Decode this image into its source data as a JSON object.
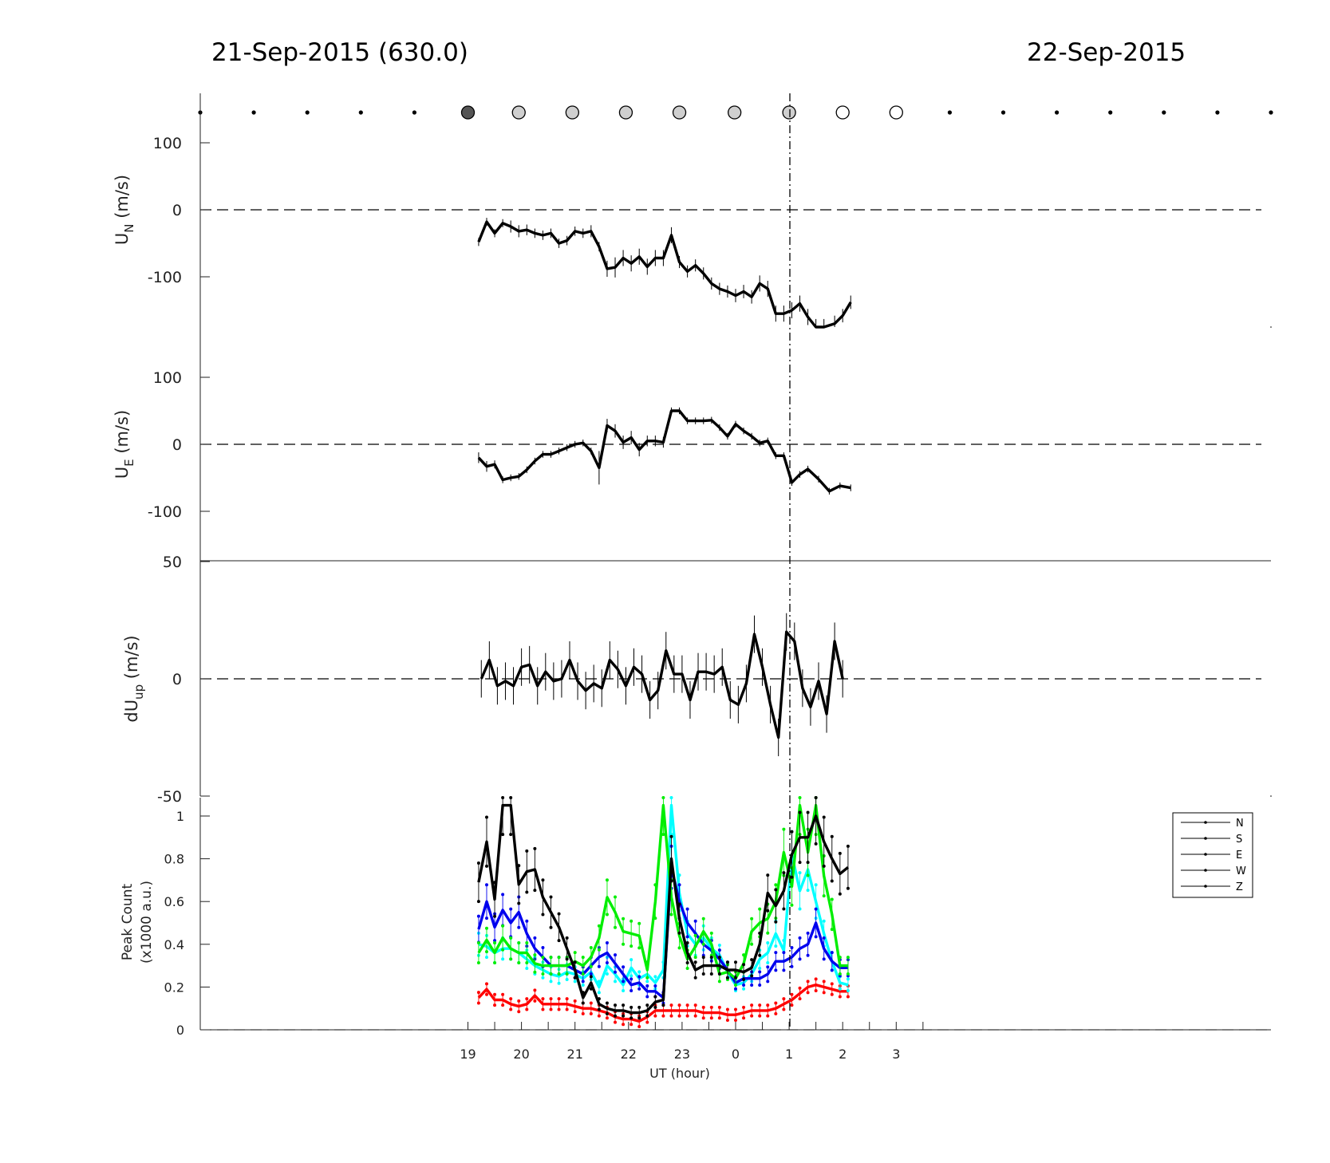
{
  "header": {
    "date_left": "21-Sep-2015 (630.0)",
    "date_right": "22-Sep-2015"
  },
  "colors": {
    "N": "#000000",
    "S": "#ff0000",
    "E": "#00ee00",
    "W": "#0000ee",
    "Z": "#00ffff"
  },
  "chart_data": [
    {
      "type": "scatter",
      "panel": "cloud-indicator",
      "x": [
        14,
        15,
        16,
        17,
        18,
        19,
        19.95,
        20.95,
        21.95,
        22.95,
        23.98,
        25,
        26,
        27,
        28,
        29,
        30,
        31,
        32,
        33,
        34
      ],
      "state": [
        "dot",
        "dot",
        "dot",
        "dot",
        "dot",
        "dark",
        "light",
        "light",
        "light",
        "light",
        "light",
        "light",
        "open",
        "open",
        "dot",
        "dot",
        "dot",
        "dot",
        "dot",
        "dot",
        "dot"
      ]
    },
    {
      "type": "line",
      "panel": "UN",
      "ylabel": "U",
      "ylabel_sub": "N",
      "ylabel_unit": " (m/s)",
      "xlim": [
        14,
        34
      ],
      "ylim": [
        -175,
        175
      ],
      "yticks": [
        100,
        0,
        -100
      ],
      "x": [
        19.2,
        19.35,
        19.5,
        19.65,
        19.8,
        19.95,
        20.1,
        20.25,
        20.4,
        20.55,
        20.7,
        20.85,
        21.0,
        21.15,
        21.3,
        21.45,
        21.6,
        21.75,
        21.9,
        22.05,
        22.2,
        22.35,
        22.5,
        22.65,
        22.8,
        22.95,
        23.1,
        23.25,
        23.4,
        23.55,
        23.7,
        23.85,
        24.0,
        24.15,
        24.3,
        24.45,
        24.6,
        24.75,
        24.9,
        25.05,
        25.2,
        25.35,
        25.5,
        25.65,
        25.85,
        26.0,
        26.15
      ],
      "y": [
        -48,
        -18,
        -35,
        -20,
        -25,
        -32,
        -30,
        -35,
        -38,
        -35,
        -50,
        -46,
        -32,
        -35,
        -32,
        -55,
        -88,
        -86,
        -72,
        -80,
        -70,
        -85,
        -72,
        -72,
        -38,
        -78,
        -92,
        -83,
        -95,
        -110,
        -118,
        -122,
        -128,
        -122,
        -130,
        -110,
        -118,
        -155,
        -155,
        -150,
        -140,
        -160,
        -175,
        -175,
        -170,
        -158,
        -138
      ],
      "err": [
        6,
        6,
        6,
        6,
        9,
        9,
        8,
        7,
        7,
        7,
        7,
        7,
        7,
        7,
        9,
        7,
        12,
        15,
        12,
        12,
        12,
        12,
        12,
        12,
        12,
        9,
        9,
        9,
        9,
        9,
        9,
        9,
        10,
        10,
        10,
        12,
        12,
        12,
        12,
        12,
        12,
        12,
        12,
        12,
        12,
        10,
        10
      ]
    },
    {
      "type": "line",
      "panel": "UE",
      "ylabel": "U",
      "ylabel_sub": "E",
      "ylabel_unit": " (m/s)",
      "xlim": [
        14,
        34
      ],
      "ylim": [
        -175,
        175
      ],
      "yticks": [
        100,
        0,
        -100
      ],
      "x": [
        19.2,
        19.35,
        19.5,
        19.65,
        19.8,
        19.95,
        20.1,
        20.25,
        20.4,
        20.55,
        20.7,
        20.85,
        21.0,
        21.15,
        21.3,
        21.45,
        21.6,
        21.75,
        21.9,
        22.05,
        22.2,
        22.35,
        22.5,
        22.65,
        22.8,
        22.95,
        23.1,
        23.25,
        23.4,
        23.55,
        23.7,
        23.85,
        24.0,
        24.15,
        24.3,
        24.45,
        24.6,
        24.75,
        24.9,
        25.05,
        25.2,
        25.35,
        25.55,
        25.75,
        25.95,
        26.15
      ],
      "y": [
        -20,
        -33,
        -30,
        -53,
        -50,
        -48,
        -38,
        -25,
        -15,
        -15,
        -10,
        -5,
        0,
        2,
        -10,
        -35,
        28,
        20,
        3,
        10,
        -8,
        5,
        5,
        3,
        50,
        50,
        35,
        35,
        35,
        36,
        25,
        12,
        30,
        20,
        12,
        2,
        5,
        -17,
        -17,
        -57,
        -45,
        -37,
        -52,
        -70,
        -62,
        -65
      ],
      "err": [
        8,
        8,
        6,
        5,
        5,
        5,
        5,
        5,
        5,
        5,
        5,
        5,
        5,
        5,
        5,
        25,
        10,
        10,
        10,
        10,
        10,
        8,
        8,
        8,
        5,
        5,
        5,
        5,
        5,
        5,
        5,
        5,
        5,
        5,
        5,
        5,
        5,
        5,
        5,
        5,
        5,
        5,
        5,
        5,
        5,
        5
      ]
    },
    {
      "type": "line",
      "panel": "dUup",
      "ylabel": "dU",
      "ylabel_sub": "up",
      "ylabel_unit": " (m/s)",
      "xlim": [
        14,
        34
      ],
      "ylim": [
        -50,
        50
      ],
      "yticks": [
        50,
        0,
        -50
      ],
      "x": [
        19.25,
        19.4,
        19.55,
        19.7,
        19.85,
        20.0,
        20.15,
        20.3,
        20.45,
        20.6,
        20.75,
        20.9,
        21.05,
        21.2,
        21.35,
        21.5,
        21.65,
        21.8,
        21.95,
        22.1,
        22.25,
        22.4,
        22.55,
        22.7,
        22.85,
        23.0,
        23.15,
        23.3,
        23.45,
        23.6,
        23.75,
        23.9,
        24.05,
        24.2,
        24.35,
        24.5,
        24.65,
        24.8,
        24.95,
        25.1,
        25.25,
        25.4,
        25.55,
        25.7,
        25.85,
        26.0
      ],
      "y": [
        0,
        8,
        -3,
        -1,
        -3,
        5,
        6,
        -3,
        3,
        -1,
        0,
        8,
        -1,
        -5,
        -2,
        -4,
        8,
        4,
        -3,
        5,
        2,
        -9,
        -5,
        12,
        2,
        2,
        -9,
        3,
        3,
        2,
        5,
        -9,
        -11,
        -2,
        19,
        5,
        -11,
        -25,
        20,
        16,
        -4,
        -12,
        -1,
        -15,
        16,
        0
      ],
      "err": [
        8,
        8,
        8,
        8,
        8,
        8,
        8,
        8,
        8,
        8,
        8,
        8,
        8,
        8,
        8,
        8,
        8,
        8,
        8,
        8,
        8,
        8,
        8,
        8,
        8,
        8,
        8,
        8,
        8,
        8,
        8,
        8,
        8,
        8,
        8,
        8,
        8,
        8,
        8,
        8,
        8,
        8,
        8,
        8,
        8,
        8
      ]
    },
    {
      "type": "line",
      "panel": "peak-count",
      "ylabel": "Peak Count",
      "ylabel2": "(x1000 a.u.)",
      "xlabel": "UT (hour)",
      "xlim": [
        14,
        34
      ],
      "ylim": [
        0,
        1
      ],
      "yticks": [
        "1",
        "0.8",
        "0.6",
        "0.4",
        "0.2",
        "0"
      ],
      "xticks": [
        "19",
        "20",
        "21",
        "22",
        "23",
        "0",
        "1",
        "2",
        "3"
      ],
      "xtick_values": [
        19,
        20,
        21,
        22,
        23,
        24,
        25,
        26,
        27
      ],
      "legend": [
        "N",
        "S",
        "E",
        "W",
        "Z"
      ],
      "legend_position": "right",
      "series": [
        {
          "name": "N",
          "x": [
            19.2,
            19.35,
            19.5,
            19.65,
            19.8,
            19.95,
            20.1,
            20.25,
            20.4,
            20.55,
            20.7,
            20.85,
            21.0,
            21.15,
            21.3,
            21.45,
            21.6,
            21.75,
            21.9,
            22.05,
            22.2,
            22.35,
            22.5,
            22.65,
            22.8,
            22.95,
            23.1,
            23.25,
            23.4,
            23.55,
            23.7,
            23.85,
            24.0,
            24.15,
            24.3,
            24.45,
            24.6,
            24.75,
            24.9,
            25.05,
            25.2,
            25.35,
            25.5,
            25.65,
            25.8,
            25.95,
            26.1
          ],
          "y": [
            0.69,
            0.88,
            0.61,
            1.05,
            1.05,
            0.68,
            0.74,
            0.75,
            0.62,
            0.55,
            0.48,
            0.38,
            0.28,
            0.15,
            0.22,
            0.12,
            0.1,
            0.09,
            0.09,
            0.08,
            0.08,
            0.09,
            0.13,
            0.14,
            0.8,
            0.52,
            0.36,
            0.28,
            0.3,
            0.3,
            0.3,
            0.28,
            0.28,
            0.27,
            0.29,
            0.4,
            0.64,
            0.58,
            0.65,
            0.82,
            0.9,
            0.9,
            1.0,
            0.88,
            0.8,
            0.73,
            0.76
          ]
        },
        {
          "name": "S",
          "x": [
            19.2,
            19.35,
            19.5,
            19.65,
            19.8,
            19.95,
            20.1,
            20.25,
            20.4,
            20.55,
            20.7,
            20.85,
            21.0,
            21.15,
            21.3,
            21.45,
            21.6,
            21.75,
            21.9,
            22.05,
            22.2,
            22.35,
            22.5,
            22.65,
            22.8,
            22.95,
            23.1,
            23.25,
            23.4,
            23.55,
            23.7,
            23.85,
            24.0,
            24.15,
            24.3,
            24.45,
            24.6,
            24.75,
            24.9,
            25.05,
            25.2,
            25.35,
            25.5,
            25.65,
            25.8,
            25.95,
            26.1
          ],
          "y": [
            0.15,
            0.19,
            0.14,
            0.14,
            0.12,
            0.11,
            0.12,
            0.16,
            0.12,
            0.12,
            0.12,
            0.12,
            0.11,
            0.1,
            0.1,
            0.09,
            0.08,
            0.06,
            0.05,
            0.05,
            0.04,
            0.06,
            0.09,
            0.09,
            0.09,
            0.09,
            0.09,
            0.09,
            0.08,
            0.08,
            0.08,
            0.07,
            0.07,
            0.08,
            0.09,
            0.09,
            0.09,
            0.1,
            0.12,
            0.14,
            0.17,
            0.2,
            0.21,
            0.2,
            0.19,
            0.18,
            0.18
          ]
        },
        {
          "name": "E",
          "x": [
            19.2,
            19.35,
            19.5,
            19.65,
            19.8,
            19.95,
            20.1,
            20.25,
            20.4,
            20.55,
            20.7,
            20.85,
            21.0,
            21.15,
            21.3,
            21.45,
            21.6,
            21.75,
            21.9,
            22.05,
            22.2,
            22.35,
            22.5,
            22.65,
            22.8,
            22.95,
            23.1,
            23.25,
            23.4,
            23.55,
            23.7,
            23.85,
            24.0,
            24.15,
            24.3,
            24.45,
            24.6,
            24.75,
            24.9,
            25.05,
            25.2,
            25.35,
            25.5,
            25.65,
            25.8,
            25.95,
            26.1
          ],
          "y": [
            0.36,
            0.42,
            0.36,
            0.43,
            0.38,
            0.36,
            0.36,
            0.31,
            0.3,
            0.3,
            0.3,
            0.3,
            0.32,
            0.3,
            0.34,
            0.43,
            0.62,
            0.55,
            0.46,
            0.45,
            0.44,
            0.28,
            0.6,
            1.05,
            0.62,
            0.44,
            0.33,
            0.39,
            0.46,
            0.4,
            0.26,
            0.27,
            0.24,
            0.31,
            0.46,
            0.5,
            0.52,
            0.6,
            0.83,
            0.67,
            1.05,
            0.83,
            1.05,
            0.72,
            0.54,
            0.3,
            0.3
          ]
        },
        {
          "name": "W",
          "x": [
            19.2,
            19.35,
            19.5,
            19.65,
            19.8,
            19.95,
            20.1,
            20.25,
            20.4,
            20.55,
            20.7,
            20.85,
            21.0,
            21.15,
            21.3,
            21.45,
            21.6,
            21.75,
            21.9,
            22.05,
            22.2,
            22.35,
            22.5,
            22.65,
            22.8,
            22.95,
            23.1,
            23.25,
            23.4,
            23.55,
            23.7,
            23.85,
            24.0,
            24.15,
            24.3,
            24.45,
            24.6,
            24.75,
            24.9,
            25.05,
            25.2,
            25.35,
            25.5,
            25.65,
            25.8,
            25.95,
            26.1
          ],
          "y": [
            0.47,
            0.6,
            0.48,
            0.56,
            0.5,
            0.55,
            0.45,
            0.38,
            0.34,
            0.3,
            0.3,
            0.3,
            0.28,
            0.26,
            0.3,
            0.34,
            0.36,
            0.31,
            0.26,
            0.21,
            0.22,
            0.18,
            0.18,
            0.15,
            0.76,
            0.6,
            0.5,
            0.45,
            0.4,
            0.37,
            0.33,
            0.28,
            0.22,
            0.24,
            0.24,
            0.24,
            0.26,
            0.32,
            0.32,
            0.34,
            0.38,
            0.4,
            0.5,
            0.38,
            0.32,
            0.29,
            0.29
          ]
        },
        {
          "name": "Z",
          "x": [
            19.2,
            19.35,
            19.5,
            19.65,
            19.8,
            19.95,
            20.1,
            20.25,
            20.4,
            20.55,
            20.7,
            20.85,
            21.0,
            21.15,
            21.3,
            21.45,
            21.6,
            21.75,
            21.9,
            22.05,
            22.2,
            22.35,
            22.5,
            22.65,
            22.8,
            22.95,
            23.1,
            23.25,
            23.4,
            23.55,
            23.7,
            23.85,
            24.0,
            24.15,
            24.3,
            24.45,
            24.6,
            24.75,
            24.9,
            25.05,
            25.2,
            25.35,
            25.5,
            25.65,
            25.8,
            25.95,
            26.1
          ],
          "y": [
            0.4,
            0.39,
            0.36,
            0.38,
            0.38,
            0.36,
            0.33,
            0.3,
            0.28,
            0.26,
            0.25,
            0.27,
            0.26,
            0.24,
            0.27,
            0.2,
            0.3,
            0.26,
            0.21,
            0.29,
            0.24,
            0.26,
            0.22,
            0.28,
            1.05,
            0.64,
            0.45,
            0.4,
            0.43,
            0.38,
            0.35,
            0.27,
            0.21,
            0.22,
            0.26,
            0.33,
            0.36,
            0.45,
            0.37,
            0.82,
            0.65,
            0.75,
            0.6,
            0.45,
            0.32,
            0.22,
            0.21
          ]
        }
      ]
    }
  ]
}
